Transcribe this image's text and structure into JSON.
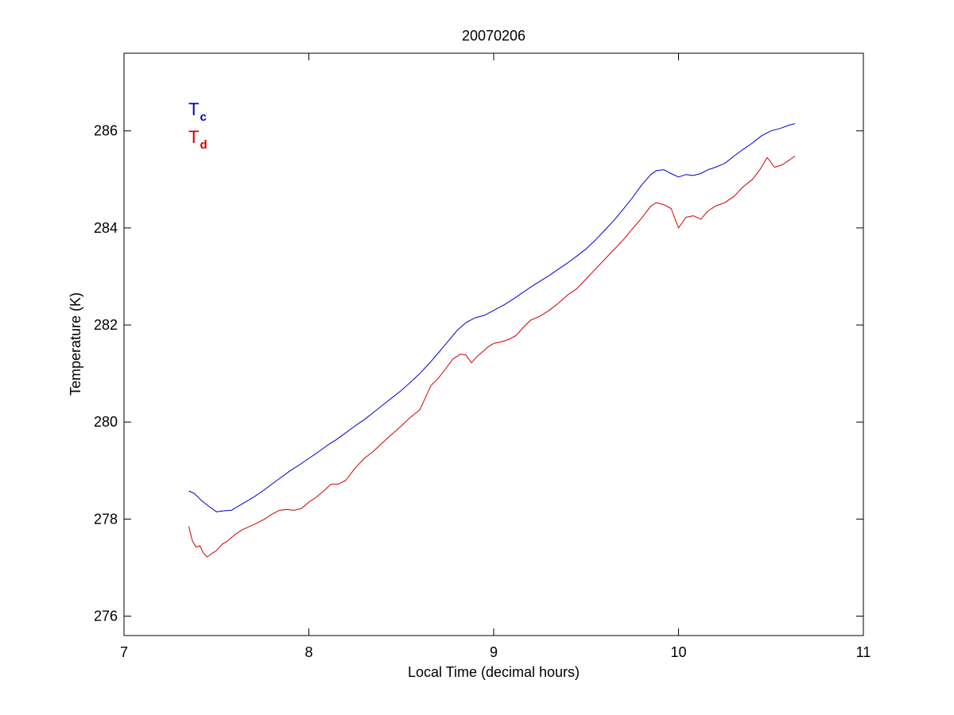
{
  "chart_data": {
    "type": "line",
    "title": "20070206",
    "xlabel": "Local Time (decimal hours)",
    "ylabel": "Temperature (K)",
    "xlim": [
      7,
      11
    ],
    "ylim": [
      275.6,
      287.6
    ],
    "xticks": [
      7,
      8,
      9,
      10,
      11
    ],
    "yticks": [
      276,
      278,
      280,
      282,
      284,
      286
    ],
    "xtick_labels": [
      "7",
      "8",
      "9",
      "10",
      "11"
    ],
    "ytick_labels": [
      "276",
      "278",
      "280",
      "282",
      "284",
      "286"
    ],
    "grid": false,
    "legend_position": "top-left",
    "series": [
      {
        "name": "T",
        "subscript": "c",
        "color": "#0000cc",
        "x": [
          7.35,
          7.38,
          7.42,
          7.46,
          7.5,
          7.54,
          7.58,
          7.62,
          7.66,
          7.7,
          7.75,
          7.8,
          7.85,
          7.9,
          7.95,
          8.0,
          8.05,
          8.1,
          8.15,
          8.2,
          8.25,
          8.3,
          8.35,
          8.4,
          8.45,
          8.5,
          8.55,
          8.6,
          8.65,
          8.7,
          8.75,
          8.8,
          8.85,
          8.9,
          8.95,
          9.0,
          9.05,
          9.1,
          9.15,
          9.2,
          9.25,
          9.3,
          9.35,
          9.4,
          9.45,
          9.5,
          9.55,
          9.6,
          9.65,
          9.7,
          9.75,
          9.8,
          9.85,
          9.88,
          9.92,
          9.96,
          10.0,
          10.04,
          10.08,
          10.12,
          10.16,
          10.2,
          10.25,
          10.3,
          10.35,
          10.4,
          10.45,
          10.5,
          10.55,
          10.6,
          10.63
        ],
        "y": [
          278.58,
          278.53,
          278.38,
          278.26,
          278.15,
          278.17,
          278.18,
          278.27,
          278.36,
          278.45,
          278.58,
          278.72,
          278.86,
          279.0,
          279.12,
          279.25,
          279.38,
          279.52,
          279.64,
          279.78,
          279.92,
          280.05,
          280.2,
          280.35,
          280.5,
          280.65,
          280.82,
          281.0,
          281.2,
          281.42,
          281.65,
          281.88,
          282.05,
          282.15,
          282.2,
          282.3,
          282.4,
          282.52,
          282.65,
          282.78,
          282.9,
          283.02,
          283.15,
          283.28,
          283.42,
          283.57,
          283.75,
          283.95,
          284.15,
          284.38,
          284.62,
          284.88,
          285.1,
          285.18,
          285.2,
          285.12,
          285.05,
          285.1,
          285.08,
          285.12,
          285.2,
          285.25,
          285.33,
          285.48,
          285.62,
          285.75,
          285.9,
          286.0,
          286.05,
          286.12,
          286.15
        ]
      },
      {
        "name": "T",
        "subscript": "d",
        "color": "#cc0000",
        "x": [
          7.35,
          7.37,
          7.39,
          7.41,
          7.43,
          7.45,
          7.47,
          7.5,
          7.53,
          7.56,
          7.6,
          7.64,
          7.68,
          7.72,
          7.76,
          7.8,
          7.84,
          7.88,
          7.92,
          7.96,
          8.0,
          8.04,
          8.08,
          8.12,
          8.16,
          8.2,
          8.25,
          8.3,
          8.35,
          8.4,
          8.45,
          8.5,
          8.55,
          8.6,
          8.63,
          8.66,
          8.7,
          8.74,
          8.78,
          8.82,
          8.85,
          8.88,
          8.91,
          8.94,
          8.97,
          9.0,
          9.04,
          9.08,
          9.12,
          9.16,
          9.2,
          9.25,
          9.3,
          9.35,
          9.4,
          9.45,
          9.5,
          9.55,
          9.6,
          9.65,
          9.7,
          9.75,
          9.8,
          9.85,
          9.88,
          9.92,
          9.96,
          10.0,
          10.04,
          10.08,
          10.12,
          10.16,
          10.2,
          10.25,
          10.3,
          10.35,
          10.4,
          10.44,
          10.48,
          10.52,
          10.56,
          10.6,
          10.63
        ],
        "y": [
          277.85,
          277.55,
          277.42,
          277.45,
          277.3,
          277.22,
          277.28,
          277.35,
          277.48,
          277.55,
          277.68,
          277.78,
          277.85,
          277.92,
          278.0,
          278.1,
          278.18,
          278.2,
          278.18,
          278.22,
          278.35,
          278.45,
          278.58,
          278.72,
          278.72,
          278.8,
          279.05,
          279.25,
          279.4,
          279.58,
          279.75,
          279.92,
          280.1,
          280.25,
          280.5,
          280.75,
          280.9,
          281.1,
          281.3,
          281.4,
          281.38,
          281.22,
          281.35,
          281.45,
          281.55,
          281.62,
          281.65,
          281.7,
          281.78,
          281.95,
          282.1,
          282.18,
          282.3,
          282.45,
          282.62,
          282.75,
          282.95,
          283.15,
          283.35,
          283.55,
          283.75,
          283.98,
          284.2,
          284.45,
          284.52,
          284.48,
          284.4,
          284.0,
          284.22,
          284.25,
          284.18,
          284.35,
          284.45,
          284.52,
          284.65,
          284.85,
          285.0,
          285.2,
          285.45,
          285.25,
          285.3,
          285.4,
          285.48
        ]
      }
    ]
  }
}
